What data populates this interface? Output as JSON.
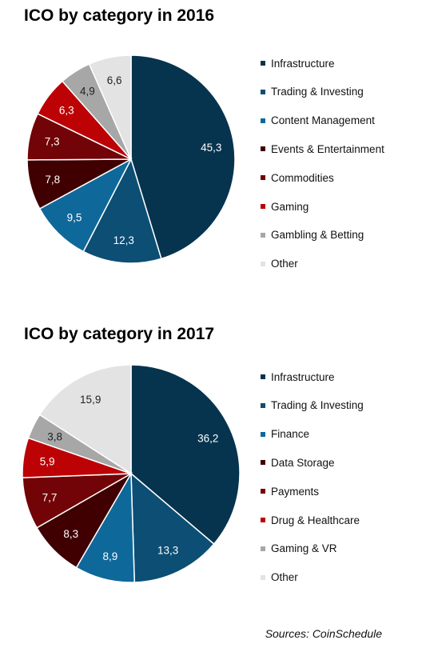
{
  "chart_data": [
    {
      "type": "pie",
      "title": "ICO by category in 2016",
      "categories": [
        "Infrastructure",
        "Trading & Investing",
        "Content Management",
        "Events & Entertainment",
        "Commodities",
        "Gaming",
        "Gambling & Betting",
        "Other"
      ],
      "values": [
        45.3,
        12.3,
        9.5,
        7.8,
        7.3,
        6.3,
        4.9,
        6.6
      ],
      "value_labels": [
        "45,3",
        "12,3",
        "9,5",
        "7,8",
        "7,3",
        "6,3",
        "4,9",
        "6,6"
      ],
      "colors": [
        "#06344e",
        "#0c4e74",
        "#0f689a",
        "#400002",
        "#720306",
        "#bd0205",
        "#a7a7a7",
        "#e3e3e3"
      ],
      "label_colors": [
        "#ffffff",
        "#ffffff",
        "#ffffff",
        "#ffffff",
        "#ffffff",
        "#ffffff",
        "#222222",
        "#222222"
      ],
      "legend_position": "right"
    },
    {
      "type": "pie",
      "title": "ICO by category in 2017",
      "categories": [
        "Infrastructure",
        "Trading & Investing",
        "Finance",
        "Data Storage",
        "Payments",
        "Drug & Healthcare",
        "Gaming & VR",
        "Other"
      ],
      "values": [
        36.2,
        13.3,
        8.9,
        8.3,
        7.7,
        5.9,
        3.8,
        15.9
      ],
      "value_labels": [
        "36,2",
        "13,3",
        "8,9",
        "8,3",
        "7,7",
        "5,9",
        "3,8",
        "15,9"
      ],
      "colors": [
        "#06344e",
        "#0c4e74",
        "#0f689a",
        "#400002",
        "#720306",
        "#bd0205",
        "#a7a7a7",
        "#e3e3e3"
      ],
      "label_colors": [
        "#ffffff",
        "#ffffff",
        "#ffffff",
        "#ffffff",
        "#ffffff",
        "#ffffff",
        "#222222",
        "#222222"
      ],
      "legend_position": "right"
    }
  ],
  "source": "Sources: CoinSchedule"
}
